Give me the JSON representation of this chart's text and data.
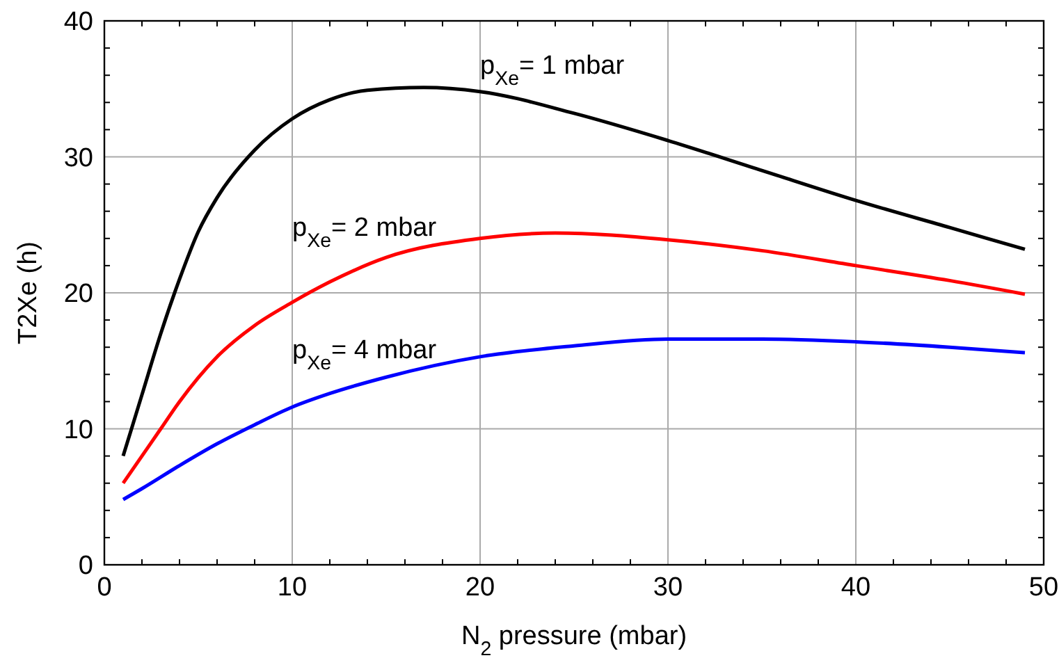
{
  "chart_data": {
    "type": "line",
    "xlabel": "N$_{2}$ pressure (mbar)",
    "ylabel": "T2Xe (h)",
    "xlim": [
      0,
      50
    ],
    "xticks": [
      0,
      10,
      20,
      30,
      40,
      50
    ],
    "ylim": [
      0,
      40
    ],
    "yticks": [
      0,
      10,
      20,
      30,
      40
    ],
    "grid": true,
    "series": [
      {
        "name": "p$_{Xe}$= 1 mbar",
        "color": "#000000",
        "x": [
          1,
          2,
          3,
          4,
          5,
          6,
          8,
          10,
          12,
          14,
          17,
          20,
          25,
          30,
          35,
          40,
          45,
          49
        ],
        "values": [
          8,
          12.5,
          17,
          21,
          24.5,
          27,
          30.5,
          32.8,
          34.2,
          34.9,
          35.1,
          34.8,
          33.2,
          31.2,
          29,
          26.8,
          24.8,
          23.2
        ]
      },
      {
        "name": "p$_{Xe}$= 2 mbar",
        "color": "#ff0000",
        "x": [
          1,
          2,
          3,
          4,
          6,
          8,
          10,
          12,
          15,
          20,
          24,
          30,
          35,
          40,
          45,
          49
        ],
        "values": [
          6,
          8,
          10,
          12,
          15.3,
          17.6,
          19.3,
          20.8,
          22.6,
          24,
          24.4,
          23.9,
          23.1,
          22,
          20.9,
          19.9
        ]
      },
      {
        "name": "p$_{Xe}$= 4 mbar",
        "color": "#0000ff",
        "x": [
          1,
          2,
          4,
          6,
          8,
          10,
          12,
          15,
          20,
          25,
          30,
          35,
          40,
          45,
          49
        ],
        "values": [
          4.8,
          5.6,
          7.3,
          8.9,
          10.3,
          11.6,
          12.6,
          13.8,
          15.3,
          16.1,
          16.6,
          16.6,
          16.4,
          16,
          15.6
        ]
      }
    ]
  }
}
